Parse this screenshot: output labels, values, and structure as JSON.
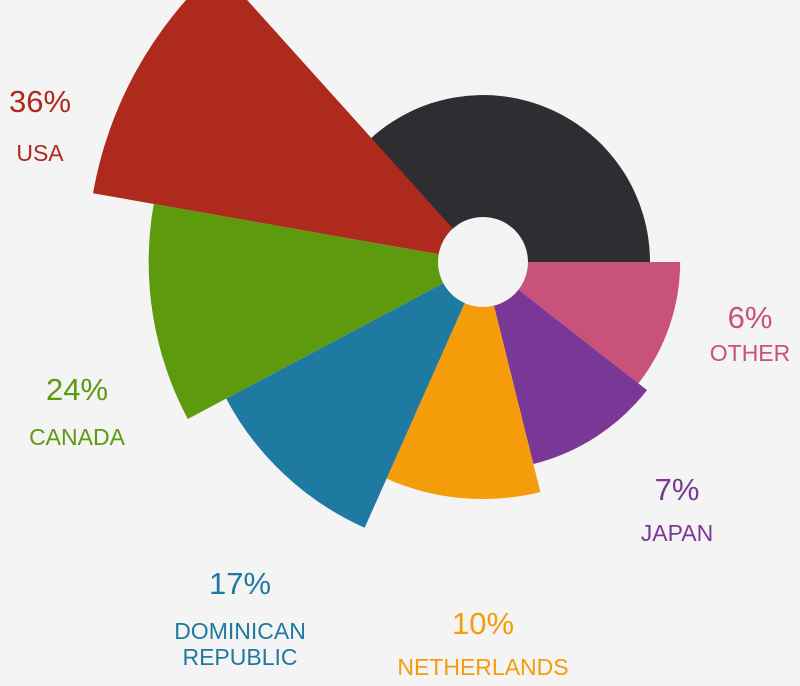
{
  "chart_data": {
    "type": "rose",
    "categories": [
      "OTHER",
      "JAPAN",
      "NETHERLANDS",
      "DOMINICAN REPUBLIC",
      "CANADA",
      "USA"
    ],
    "values": [
      6,
      7,
      10,
      17,
      24,
      36
    ],
    "value_labels": [
      "6%",
      "7%",
      "10%",
      "17%",
      "24%",
      "36%"
    ],
    "colors": [
      "#c8527a",
      "#7b3795",
      "#f59c0a",
      "#1e7aa0",
      "#5e9a0e",
      "#ad2a1c"
    ]
  }
}
